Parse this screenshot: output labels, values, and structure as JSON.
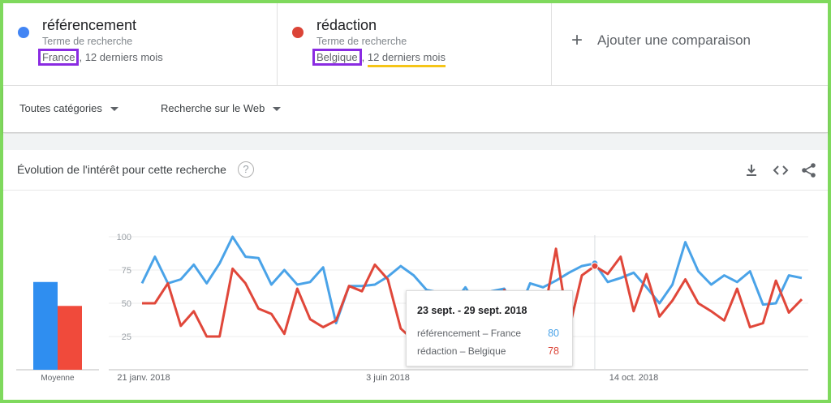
{
  "terms": [
    {
      "name": "référencement",
      "subtitle": "Terme de recherche",
      "region": "France",
      "period": ", 12 derniers mois",
      "color": "#4285f4"
    },
    {
      "name": "rédaction",
      "subtitle": "Terme de recherche",
      "region": "Belgique",
      "period": "12 derniers mois",
      "color": "#db4437"
    }
  ],
  "add_comparison": {
    "icon": "plus-icon",
    "label": "Ajouter une comparaison"
  },
  "filters": {
    "category": "Toutes catégories",
    "search_type": "Recherche sur le Web"
  },
  "card": {
    "title": "Évolution de l'intérêt pour cette recherche",
    "help": "?",
    "tools": [
      "download-icon",
      "embed-icon",
      "share-icon"
    ]
  },
  "tooltip": {
    "title": "23 sept. - 29 sept. 2018",
    "rows": [
      {
        "label": "référencement – France",
        "value": "80"
      },
      {
        "label": "rédaction – Belgique",
        "value": "78"
      }
    ]
  },
  "chart_data": {
    "type": "line",
    "yticks": [
      25,
      50,
      75,
      100
    ],
    "ylim": [
      0,
      100
    ],
    "xlabels": [
      "21 janv. 2018",
      "3 juin 2018",
      "14 oct. 2018"
    ],
    "average_label": "Moyenne",
    "averages": [
      66,
      48
    ],
    "series": [
      {
        "name": "référencement – France",
        "color": "#4aa3e8",
        "values": [
          65,
          85,
          65,
          68,
          79,
          65,
          80,
          100,
          85,
          84,
          64,
          75,
          64,
          66,
          77,
          35,
          63,
          63,
          64,
          70,
          78,
          71,
          60,
          58,
          49,
          62,
          46,
          59,
          61,
          41,
          65,
          62,
          67,
          73,
          78,
          80,
          66,
          69,
          73,
          62,
          50,
          64,
          96,
          74,
          64,
          71,
          66,
          74,
          49,
          50,
          71,
          69
        ]
      },
      {
        "name": "rédaction – Belgique",
        "color": "#e0473a",
        "values": [
          50,
          50,
          65,
          33,
          44,
          25,
          25,
          76,
          65,
          46,
          42,
          27,
          61,
          38,
          32,
          37,
          63,
          59,
          79,
          68,
          31,
          22,
          44,
          33,
          39,
          23,
          52,
          23,
          60,
          39,
          51,
          38,
          91,
          30,
          71,
          78,
          72,
          85,
          44,
          72,
          40,
          52,
          68,
          50,
          44,
          37,
          61,
          32,
          35,
          67,
          43,
          53
        ]
      }
    ]
  }
}
